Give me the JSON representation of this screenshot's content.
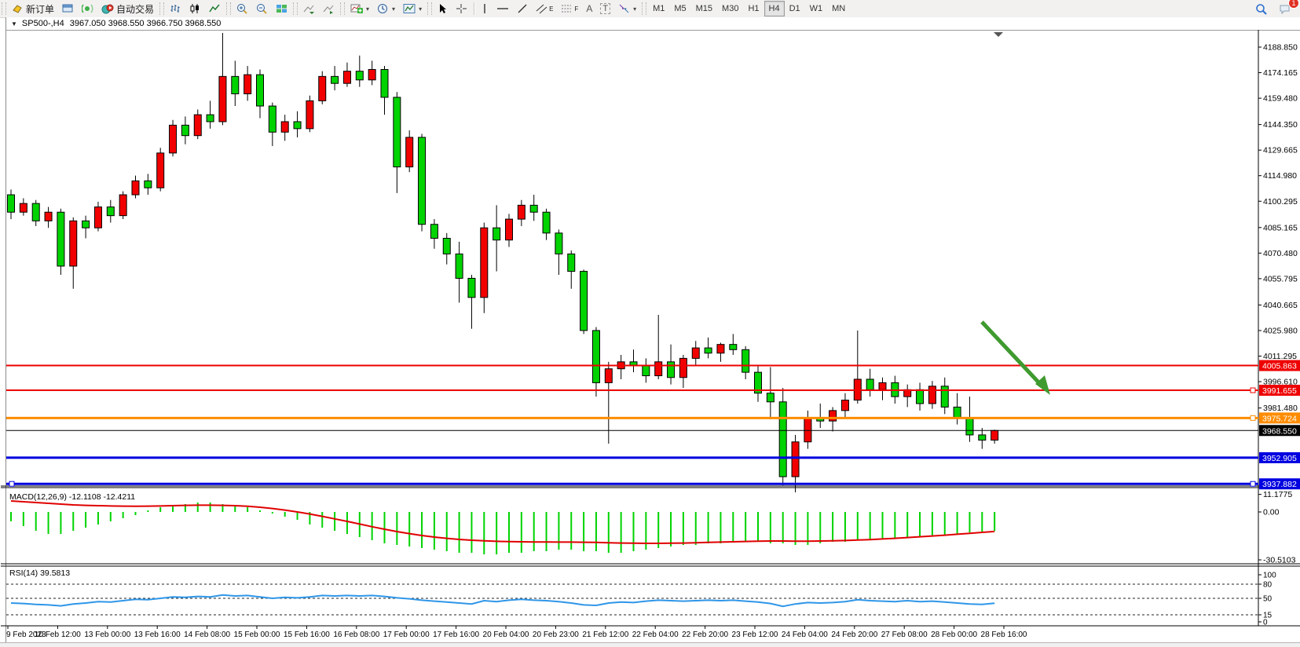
{
  "toolbar": {
    "new_order_label": "新订单",
    "auto_trading_label": "自动交易",
    "timeframes": [
      "M1",
      "M5",
      "M15",
      "M30",
      "H1",
      "H4",
      "D1",
      "W1",
      "MN"
    ],
    "active_timeframe": "H4",
    "notification_count": "1",
    "icon_letters": {
      "channel": "E",
      "fibo": "F",
      "text": "A",
      "label": "T"
    }
  },
  "chart_header": {
    "collapse_arrow": "▼",
    "symbol": "SP500-,H4",
    "ohlc": "3967.050 3968.550 3966.750 3968.550"
  },
  "price_scale": {
    "ticks": [
      "4188.850",
      "4174.165",
      "4159.480",
      "4144.350",
      "4129.665",
      "4114.980",
      "4100.295",
      "4085.165",
      "4070.480",
      "4055.795",
      "4040.665",
      "4025.980",
      "4011.295",
      "3996.610",
      "3981.480"
    ]
  },
  "price_lines": [
    {
      "price": 4005.863,
      "label": "4005.863",
      "color": "#ee0000",
      "width": 2,
      "selected": false
    },
    {
      "price": 3991.655,
      "label": "3991.655",
      "color": "#ee0000",
      "width": 2,
      "selected": true
    },
    {
      "price": 3975.724,
      "label": "3975.724",
      "color": "#ff8c00",
      "width": 3,
      "selected": true
    },
    {
      "price": 3968.55,
      "label": "3968.550",
      "color": "#000000",
      "width": 1,
      "selected": false
    },
    {
      "price": 3952.905,
      "label": "3952.905",
      "color": "#0000e0",
      "width": 3,
      "selected": false
    },
    {
      "price": 3937.882,
      "label": "3937.882",
      "color": "#0000e0",
      "width": 3,
      "selected": true
    }
  ],
  "macd": {
    "label": "MACD(12,26,9)",
    "values": "-12.1108 -12.4211",
    "scale": [
      "11.1775",
      "0.00",
      "-30.5103"
    ]
  },
  "rsi": {
    "label": "RSI(14)",
    "value": "39.5813",
    "scale": [
      "100",
      "80",
      "50",
      "15",
      "0"
    ],
    "levels": [
      80,
      50,
      15
    ]
  },
  "time_axis": {
    "labels": [
      "9 Feb 2023",
      "10 Feb 12:00",
      "13 Feb 00:00",
      "13 Feb 16:00",
      "14 Feb 08:00",
      "15 Feb 00:00",
      "15 Feb 16:00",
      "16 Feb 08:00",
      "17 Feb 00:00",
      "17 Feb 16:00",
      "20 Feb 04:00",
      "20 Feb 23:00",
      "21 Feb 12:00",
      "22 Feb 04:00",
      "22 Feb 20:00",
      "23 Feb 12:00",
      "24 Feb 04:00",
      "24 Feb 20:00",
      "27 Feb 08:00",
      "28 Feb 00:00",
      "28 Feb 16:00"
    ]
  },
  "arrow_object": {
    "color": "#3f9a2f"
  },
  "chart_data": {
    "type": "candlestick",
    "symbol": "SP500-",
    "timeframe": "H4",
    "bull_color": "#f20000",
    "bear_color": "#00d300",
    "main_ylim": [
      3937.0,
      4197.9
    ],
    "macd_ylim": [
      -30.5103,
      11.1775
    ],
    "rsi_ylim": [
      0,
      100
    ],
    "candles": [
      [
        4104,
        4107,
        4090,
        4094
      ],
      [
        4094,
        4102,
        4092,
        4099
      ],
      [
        4099,
        4101,
        4086,
        4089
      ],
      [
        4089,
        4097,
        4085,
        4094
      ],
      [
        4094,
        4096,
        4058,
        4063
      ],
      [
        4063,
        4091,
        4050,
        4089
      ],
      [
        4089,
        4092,
        4079,
        4085
      ],
      [
        4085,
        4100,
        4083,
        4097
      ],
      [
        4097,
        4101,
        4088,
        4092
      ],
      [
        4092,
        4106,
        4090,
        4104
      ],
      [
        4104,
        4115,
        4102,
        4112
      ],
      [
        4112,
        4116,
        4104,
        4108
      ],
      [
        4108,
        4131,
        4106,
        4128
      ],
      [
        4128,
        4147,
        4126,
        4144
      ],
      [
        4144,
        4149,
        4133,
        4138
      ],
      [
        4138,
        4153,
        4136,
        4150
      ],
      [
        4150,
        4158,
        4142,
        4146
      ],
      [
        4146,
        4197,
        4144,
        4172
      ],
      [
        4172,
        4181,
        4155,
        4162
      ],
      [
        4162,
        4178,
        4158,
        4173
      ],
      [
        4173,
        4176,
        4148,
        4155
      ],
      [
        4155,
        4157,
        4132,
        4140
      ],
      [
        4140,
        4150,
        4135,
        4146
      ],
      [
        4146,
        4152,
        4137,
        4142
      ],
      [
        4142,
        4161,
        4140,
        4158
      ],
      [
        4158,
        4175,
        4156,
        4172
      ],
      [
        4172,
        4178,
        4164,
        4168
      ],
      [
        4168,
        4180,
        4166,
        4175
      ],
      [
        4175,
        4184,
        4166,
        4170
      ],
      [
        4170,
        4181,
        4167,
        4176
      ],
      [
        4176,
        4178,
        4150,
        4160
      ],
      [
        4160,
        4163,
        4105,
        4120
      ],
      [
        4120,
        4141,
        4117,
        4137
      ],
      [
        4137,
        4139,
        4083,
        4087
      ],
      [
        4087,
        4090,
        4073,
        4079
      ],
      [
        4079,
        4082,
        4064,
        4070
      ],
      [
        4070,
        4077,
        4042,
        4056
      ],
      [
        4056,
        4058,
        4027,
        4045
      ],
      [
        4045,
        4088,
        4036,
        4085
      ],
      [
        4085,
        4098,
        4060,
        4078
      ],
      [
        4078,
        4093,
        4074,
        4090
      ],
      [
        4090,
        4101,
        4086,
        4098
      ],
      [
        4098,
        4104,
        4089,
        4094
      ],
      [
        4094,
        4096,
        4078,
        4082
      ],
      [
        4082,
        4084,
        4058,
        4070
      ],
      [
        4070,
        4072,
        4050,
        4060
      ],
      [
        4060,
        4061,
        4024,
        4026
      ],
      [
        4026,
        4028,
        3988,
        3996
      ],
      [
        3996,
        4008,
        3961,
        4004
      ],
      [
        4004,
        4012,
        3998,
        4008
      ],
      [
        4008,
        4015,
        4002,
        4006
      ],
      [
        4006,
        4010,
        3996,
        4000
      ],
      [
        4000,
        4035,
        3998,
        4008
      ],
      [
        4008,
        4018,
        3995,
        3999
      ],
      [
        3999,
        4012,
        3993,
        4010
      ],
      [
        4010,
        4020,
        4006,
        4016
      ],
      [
        4016,
        4022,
        4010,
        4013
      ],
      [
        4013,
        4019,
        4008,
        4018
      ],
      [
        4018,
        4024,
        4012,
        4015
      ],
      [
        4015,
        4017,
        3998,
        4002
      ],
      [
        4002,
        4006,
        3985,
        3990
      ],
      [
        3990,
        4005,
        3975,
        3985
      ],
      [
        3985,
        3993,
        3937,
        3942
      ],
      [
        3942,
        3966,
        3933,
        3962
      ],
      [
        3962,
        3980,
        3958,
        3976
      ],
      [
        3976,
        3984,
        3970,
        3974
      ],
      [
        3974,
        3982,
        3968,
        3980
      ],
      [
        3980,
        3990,
        3976,
        3986
      ],
      [
        3986,
        4026,
        3984,
        3998
      ],
      [
        3998,
        4004,
        3988,
        3992
      ],
      [
        3992,
        3999,
        3986,
        3996
      ],
      [
        3996,
        4000,
        3984,
        3988
      ],
      [
        3988,
        3995,
        3982,
        3992
      ],
      [
        3992,
        3996,
        3980,
        3984
      ],
      [
        3984,
        3997,
        3981,
        3994
      ],
      [
        3994,
        3999,
        3978,
        3982
      ],
      [
        3982,
        3990,
        3972,
        3976
      ],
      [
        3976,
        3988,
        3962,
        3966
      ],
      [
        3966,
        3970,
        3958,
        3963
      ],
      [
        3963,
        3969,
        3961,
        3968.55
      ]
    ],
    "macd_hist": [
      -6,
      -9,
      -12,
      -14,
      -14,
      -12,
      -10,
      -8,
      -6,
      -4,
      -2,
      1,
      3,
      4,
      5,
      6,
      6,
      5,
      4,
      3,
      1,
      -1,
      -3,
      -5,
      -8,
      -10,
      -12,
      -14,
      -16,
      -18,
      -20,
      -21,
      -22,
      -23,
      -24,
      -25,
      -26,
      -26,
      -27,
      -27,
      -26,
      -26,
      -25,
      -25,
      -24,
      -24,
      -25,
      -25,
      -26,
      -26,
      -25,
      -24,
      -23,
      -22,
      -21,
      -21,
      -20,
      -20,
      -19,
      -19,
      -19,
      -20,
      -20,
      -21,
      -21,
      -20,
      -19,
      -19,
      -18,
      -18,
      -17,
      -17,
      -16,
      -16,
      -15,
      -15,
      -14,
      -13,
      -12.5,
      -12.11
    ],
    "macd_signal": [
      7,
      6.5,
      6,
      5.5,
      5,
      4.5,
      4.2,
      4,
      3.8,
      3.7,
      3.6,
      3.7,
      3.8,
      4,
      4.2,
      4.3,
      4.3,
      4.2,
      4,
      3.6,
      3,
      2.2,
      1.2,
      0,
      -1.3,
      -2.8,
      -4.4,
      -6,
      -7.7,
      -9.4,
      -11,
      -12.5,
      -13.8,
      -15,
      -16,
      -16.8,
      -17.5,
      -18,
      -18.4,
      -18.7,
      -18.9,
      -19,
      -19.1,
      -19.1,
      -19.2,
      -19.2,
      -19.3,
      -19.4,
      -19.6,
      -19.8,
      -19.9,
      -20,
      -20,
      -19.9,
      -19.8,
      -19.6,
      -19.4,
      -19.2,
      -19,
      -18.8,
      -18.6,
      -18.5,
      -18.5,
      -18.6,
      -18.6,
      -18.5,
      -18.4,
      -18.2,
      -17.9,
      -17.6,
      -17.2,
      -16.8,
      -16.3,
      -15.8,
      -15.3,
      -14.8,
      -14.2,
      -13.6,
      -13,
      -12.42
    ],
    "rsi_series": [
      40,
      39,
      37,
      36,
      34,
      38,
      40,
      43,
      42,
      45,
      48,
      47,
      50,
      53,
      52,
      54,
      53,
      57,
      55,
      56,
      53,
      50,
      52,
      51,
      53,
      56,
      55,
      56,
      55,
      56,
      54,
      51,
      49,
      46,
      44,
      42,
      40,
      38,
      45,
      43,
      46,
      48,
      46,
      45,
      43,
      40,
      36,
      35,
      40,
      42,
      41,
      44,
      46,
      45,
      44,
      45,
      46,
      45,
      46,
      44,
      42,
      39,
      33,
      38,
      41,
      40,
      41,
      43,
      47,
      45,
      44,
      43,
      45,
      43,
      44,
      42,
      40,
      38,
      37,
      39.58
    ]
  }
}
